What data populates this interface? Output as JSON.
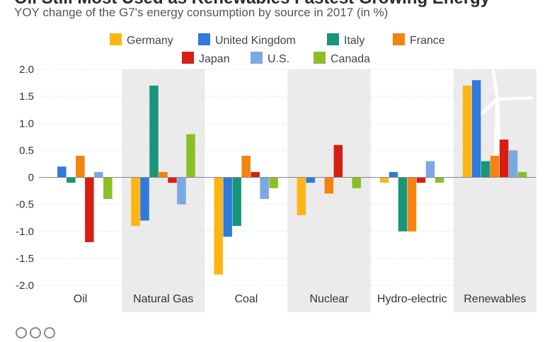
{
  "header": {
    "title": "Oil Still Most Used as Renewables Fastest Growing Energy",
    "subtitle": "YOY change of the G7's energy consumption by source in 2017 (in %)"
  },
  "colors": {
    "Germany": "#FDB515",
    "United Kingdom": "#2F7ADB",
    "Italy": "#17967A",
    "France": "#F5830F",
    "Japan": "#D81E12",
    "U.S.": "#7AA9E2",
    "Canada": "#8CBF26",
    "band": "#EBEBEB",
    "grid": "#D9D9D9"
  },
  "chart_data": {
    "type": "bar",
    "categories": [
      "Oil",
      "Natural Gas",
      "Coal",
      "Nuclear",
      "Hydro-electric",
      "Renewables"
    ],
    "series": [
      {
        "name": "Germany",
        "values": [
          0.0,
          -0.9,
          -1.8,
          -0.7,
          -0.1,
          1.7
        ]
      },
      {
        "name": "United Kingdom",
        "values": [
          0.2,
          -0.8,
          -1.1,
          -0.1,
          0.1,
          1.8
        ]
      },
      {
        "name": "Italy",
        "values": [
          -0.1,
          1.7,
          -0.9,
          0.0,
          -1.0,
          0.3
        ]
      },
      {
        "name": "France",
        "values": [
          0.4,
          0.1,
          0.4,
          -0.3,
          -1.0,
          0.4
        ]
      },
      {
        "name": "Japan",
        "values": [
          -1.2,
          -0.1,
          0.1,
          0.6,
          -0.1,
          0.7
        ]
      },
      {
        "name": "U.S.",
        "values": [
          0.1,
          -0.5,
          -0.4,
          0.0,
          0.3,
          0.5
        ]
      },
      {
        "name": "Canada",
        "values": [
          -0.4,
          0.8,
          -0.2,
          -0.2,
          -0.1,
          0.1
        ]
      }
    ],
    "ylim": [
      -2.0,
      2.0
    ],
    "yticks": [
      "2.0",
      "1.5",
      "1.0",
      "0.5",
      "0",
      "-0.5",
      "-1.0",
      "-1.5",
      "-2.0"
    ],
    "grid": true,
    "legend_position": "top"
  }
}
